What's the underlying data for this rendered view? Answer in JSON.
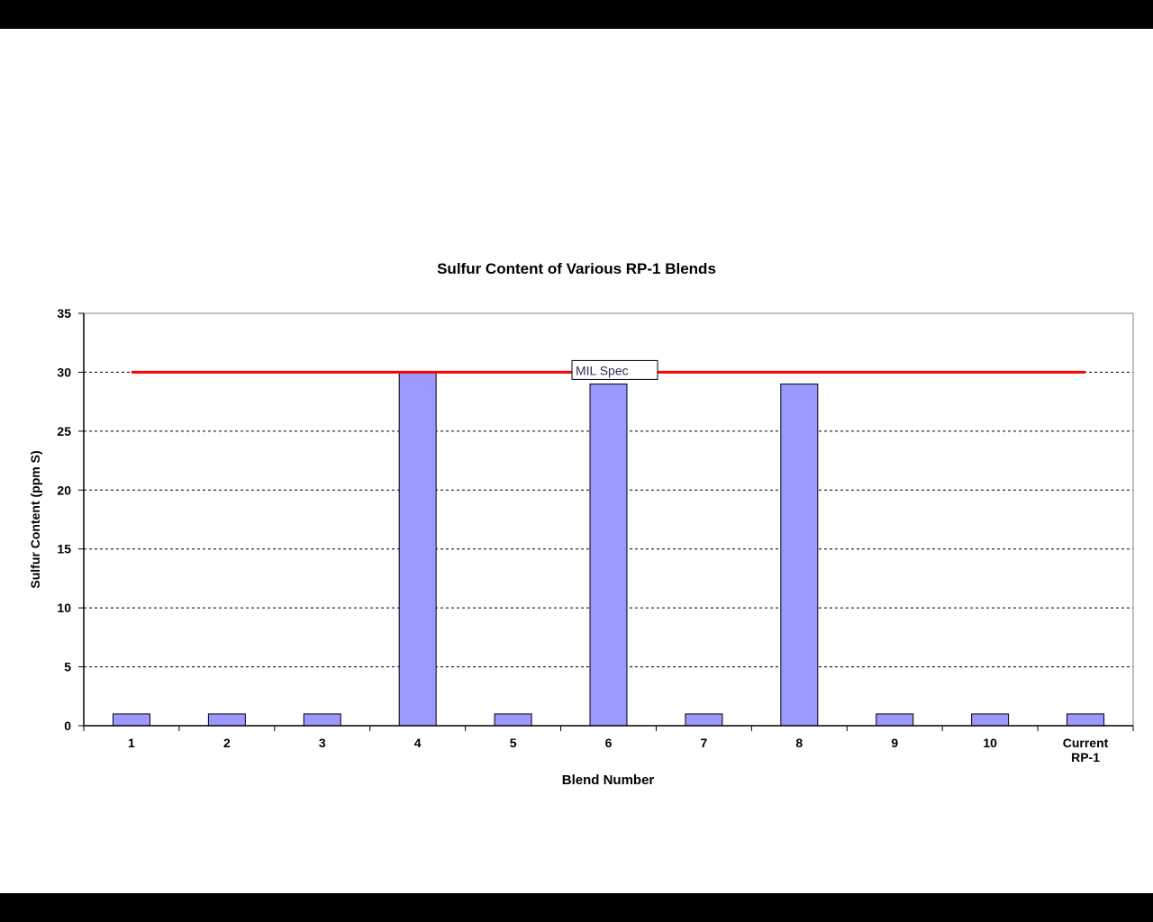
{
  "chart_data": {
    "type": "bar",
    "title": "Sulfur Content of Various RP-1 Blends",
    "xlabel": "Blend Number",
    "ylabel": "Sulfur Content (ppm S)",
    "categories": [
      [
        "1"
      ],
      [
        "2"
      ],
      [
        "3"
      ],
      [
        "4"
      ],
      [
        "5"
      ],
      [
        "6"
      ],
      [
        "7"
      ],
      [
        "8"
      ],
      [
        "9"
      ],
      [
        "10"
      ],
      [
        "Current",
        "RP-1"
      ]
    ],
    "series": [
      {
        "values": [
          1,
          1,
          1,
          30,
          1,
          29,
          1,
          29,
          1,
          1,
          1
        ],
        "color": "#9999ff"
      }
    ],
    "reference_line": {
      "value": 30,
      "label": "MIL Spec",
      "color": "#ff0000"
    },
    "ylim": [
      0,
      35
    ],
    "yticks": [
      0,
      5,
      10,
      15,
      20,
      25,
      30,
      35
    ],
    "grid": true,
    "grid_style": "dashed",
    "legend": "none"
  }
}
